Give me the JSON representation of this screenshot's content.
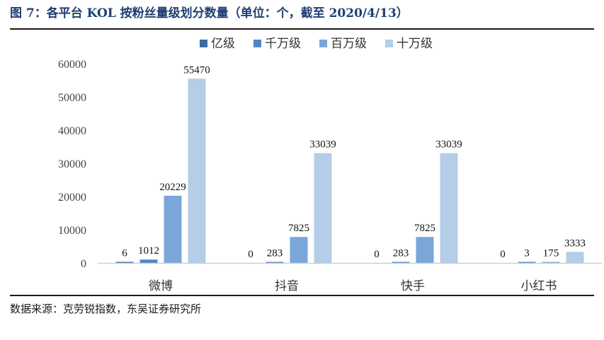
{
  "figure": {
    "title": "图 7：各平台 KOL 按粉丝量级划分数量（单位：个，截至 2020/4/13）",
    "source": "数据来源：克劳锐指数，东吴证券研究所"
  },
  "chart_data": {
    "type": "bar",
    "categories": [
      "微博",
      "抖音",
      "快手",
      "小红书"
    ],
    "series": [
      {
        "name": "亿级",
        "color": "#3a6ea5",
        "values": [
          6,
          0,
          0,
          0
        ]
      },
      {
        "name": "千万级",
        "color": "#4f86c6",
        "values": [
          1012,
          283,
          283,
          3
        ]
      },
      {
        "name": "百万级",
        "color": "#7aa6da",
        "values": [
          20229,
          7825,
          7825,
          175
        ]
      },
      {
        "name": "十万级",
        "color": "#b4cde9",
        "values": [
          55470,
          33039,
          33039,
          3333
        ]
      }
    ],
    "ylim": [
      0,
      60000
    ],
    "yticks": [
      0,
      10000,
      20000,
      30000,
      40000,
      50000,
      60000
    ],
    "legend": "top",
    "grid": false,
    "data_labels": true
  }
}
